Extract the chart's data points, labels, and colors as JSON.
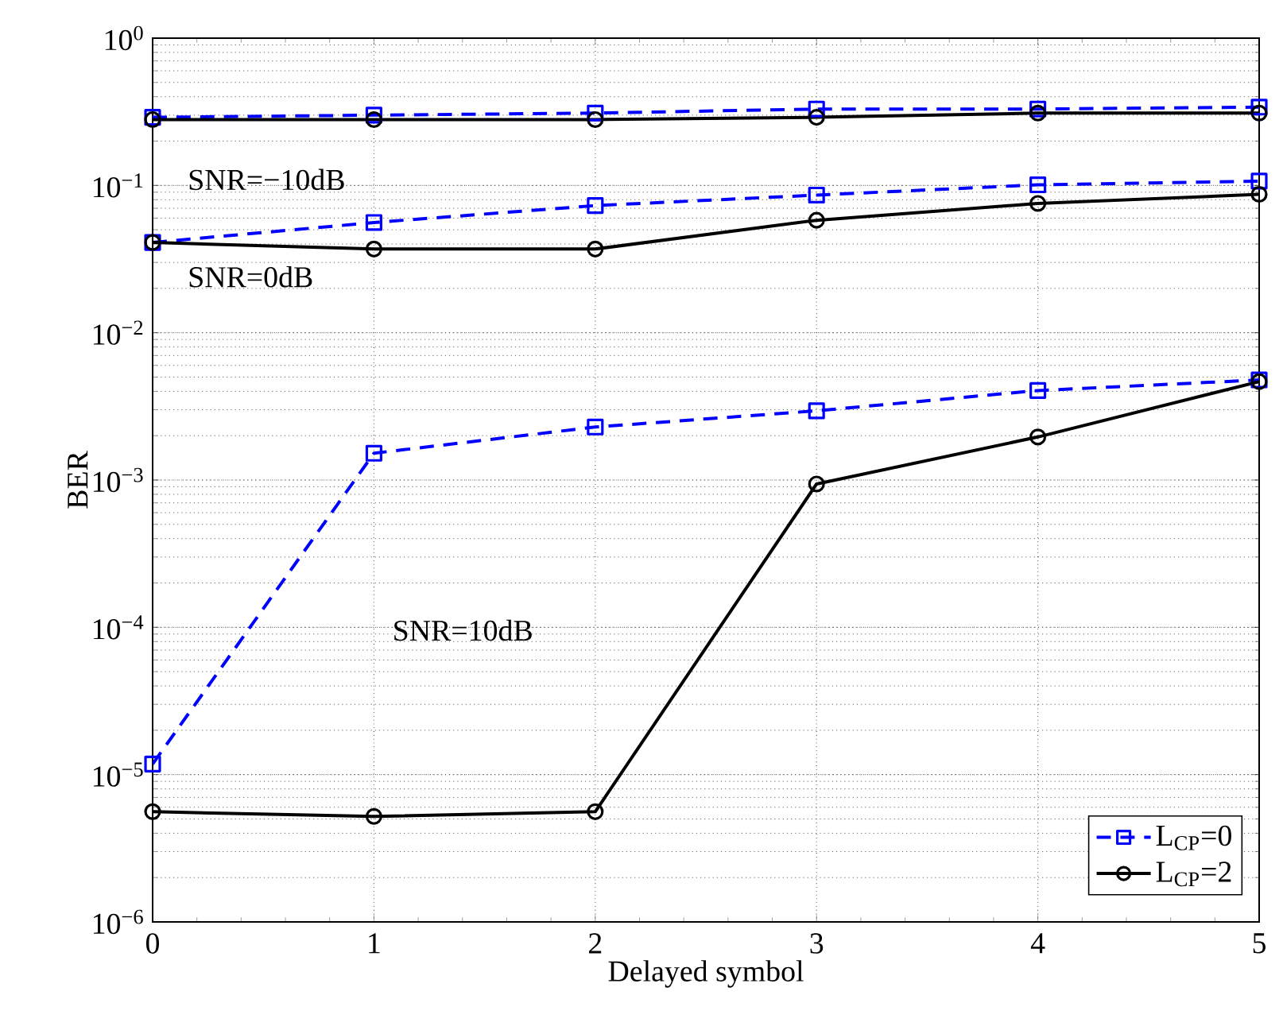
{
  "chart_data": {
    "type": "line",
    "xlabel": "Delayed symbol",
    "ylabel": "BER",
    "x": [
      0,
      1,
      2,
      3,
      4,
      5
    ],
    "series": [
      {
        "name": "L$_{CP}$=0",
        "color": "#0000ff",
        "marker": "square",
        "line_style": "dashed",
        "values": [
          0.29,
          0.3,
          0.31,
          0.33,
          0.33,
          0.34
        ]
      },
      {
        "name": "L$_{CP}$=2",
        "color": "#000000",
        "marker": "circle",
        "line_style": "solid",
        "values": [
          0.28,
          0.28,
          0.28,
          0.29,
          0.31,
          0.31
        ]
      },
      {
        "color": "#0000ff",
        "marker": "square",
        "line_style": "dashed",
        "values": [
          0.041,
          0.056,
          0.073,
          0.086,
          0.101,
          0.107
        ]
      },
      {
        "color": "#000000",
        "marker": "circle",
        "line_style": "solid",
        "values": [
          0.041,
          0.037,
          0.037,
          0.058,
          0.0755,
          0.087
        ]
      },
      {
        "color": "#0000ff",
        "marker": "square",
        "line_style": "dashed",
        "values": [
          1.18e-05,
          0.00152,
          0.00229,
          0.00295,
          0.00405,
          0.00478
        ]
      },
      {
        "color": "#000000",
        "marker": "circle",
        "line_style": "solid",
        "values": [
          5.6e-06,
          5.2e-06,
          5.6e-06,
          0.00094,
          0.00196,
          0.00466
        ]
      }
    ],
    "annotations": [
      "SNR=−10dB",
      "SNR=0dB",
      "SNR=10dB"
    ],
    "xlim": [
      0,
      5
    ],
    "xticks": [
      0,
      1,
      2,
      3,
      4,
      5
    ],
    "ylim": [
      1e-06,
      1
    ],
    "yticks": [
      {
        "value": 1e-06,
        "label": "10$^{−6}$"
      },
      {
        "value": 1e-05,
        "label": "10$^{−5}$"
      },
      {
        "value": 0.0001,
        "label": "10$^{−4}$"
      },
      {
        "value": 0.001,
        "label": "10$^{−3}$"
      },
      {
        "value": 0.01,
        "label": "10$^{−2}$"
      },
      {
        "value": 0.1,
        "label": "10$^{−1}$"
      },
      {
        "value": 1,
        "label": "10$^{0}$"
      }
    ],
    "log": "y",
    "grid": true,
    "legend": "bottom right"
  }
}
